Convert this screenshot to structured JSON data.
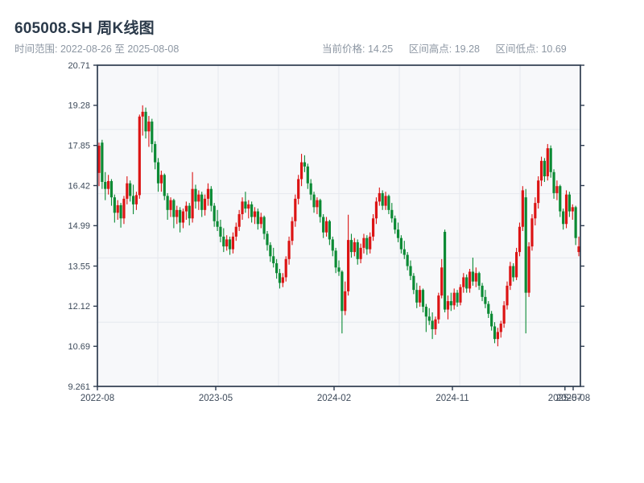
{
  "header": {
    "title": "605008.SH 周K线图",
    "time_range": "时间范围: 2022-08-26 至 2025-08-08",
    "stats": [
      {
        "label": "当前价格:",
        "value": "14.25"
      },
      {
        "label": "区间高点:",
        "value": "19.28"
      },
      {
        "label": "区间低点:",
        "value": "10.69"
      }
    ]
  },
  "chart_data": {
    "type": "candlestick",
    "title": "605008.SH 周K线图",
    "symbol": "605008.SH",
    "frequency": "weekly",
    "start_date": "2022-08-26",
    "end_date": "2025-08-08",
    "current_price": 14.25,
    "range_high": 19.28,
    "range_low": 10.69,
    "ylim": [
      9.261,
      20.71
    ],
    "grid": true,
    "colors": {
      "up": "#dc1414",
      "down": "#0b8a34",
      "plot_bg": "#f7f8fa",
      "grid": "#e6e9ee",
      "spine": "#2e3c4f",
      "tick_label": "#3d4a5a"
    },
    "y_ticks": [
      "20.71",
      "19.28",
      "17.85",
      "16.42",
      "14.99",
      "13.55",
      "12.12",
      "10.69",
      "9.261"
    ],
    "x_ticks": [
      {
        "label": "2022-08",
        "f": 0.0
      },
      {
        "label": "2023-05",
        "f": 0.245
      },
      {
        "label": "2024-02",
        "f": 0.49
      },
      {
        "label": "2024-11",
        "f": 0.735
      },
      {
        "label": "2025-07",
        "f": 0.968
      },
      {
        "label": "2025-08",
        "f": 0.985
      }
    ],
    "ohlc": [
      [
        16.87,
        17.95,
        16.4,
        17.84
      ],
      [
        17.95,
        18.05,
        16.3,
        16.55
      ],
      [
        16.55,
        16.9,
        15.9,
        16.3
      ],
      [
        16.3,
        16.8,
        16.1,
        16.58
      ],
      [
        16.58,
        16.65,
        15.7,
        16.0
      ],
      [
        16.0,
        16.1,
        15.1,
        15.45
      ],
      [
        15.45,
        15.9,
        15.2,
        15.72
      ],
      [
        15.72,
        15.8,
        14.92,
        15.25
      ],
      [
        15.25,
        16.05,
        15.05,
        15.95
      ],
      [
        15.95,
        16.75,
        15.75,
        16.5
      ],
      [
        16.5,
        16.6,
        15.85,
        16.05
      ],
      [
        16.05,
        16.45,
        15.4,
        15.75
      ],
      [
        15.75,
        16.2,
        15.55,
        16.08
      ],
      [
        16.08,
        18.95,
        15.95,
        18.88
      ],
      [
        18.88,
        19.28,
        18.2,
        19.05
      ],
      [
        19.05,
        19.2,
        18.1,
        18.35
      ],
      [
        18.35,
        18.9,
        17.8,
        18.7
      ],
      [
        18.7,
        18.8,
        17.6,
        17.9
      ],
      [
        17.9,
        18.0,
        17.0,
        17.25
      ],
      [
        17.25,
        17.4,
        16.2,
        16.5
      ],
      [
        16.5,
        16.95,
        16.2,
        16.8
      ],
      [
        16.8,
        16.85,
        15.9,
        16.05
      ],
      [
        16.05,
        16.15,
        15.2,
        15.55
      ],
      [
        15.55,
        16.0,
        15.3,
        15.9
      ],
      [
        15.9,
        15.95,
        14.9,
        15.3
      ],
      [
        15.3,
        15.7,
        15.05,
        15.55
      ],
      [
        15.55,
        15.65,
        14.75,
        15.1
      ],
      [
        15.1,
        15.6,
        14.9,
        15.5
      ],
      [
        15.5,
        15.85,
        15.2,
        15.7
      ],
      [
        15.7,
        15.8,
        15.0,
        15.25
      ],
      [
        15.25,
        16.9,
        15.1,
        16.3
      ],
      [
        16.3,
        16.45,
        15.6,
        15.85
      ],
      [
        15.85,
        16.25,
        15.55,
        16.1
      ],
      [
        16.1,
        16.2,
        15.3,
        15.55
      ],
      [
        15.55,
        16.1,
        15.35,
        15.95
      ],
      [
        15.95,
        16.5,
        15.7,
        16.3
      ],
      [
        16.3,
        16.4,
        15.5,
        15.7
      ],
      [
        15.7,
        15.8,
        14.95,
        15.15
      ],
      [
        15.15,
        15.55,
        14.8,
        14.95
      ],
      [
        14.95,
        15.2,
        14.4,
        14.6
      ],
      [
        14.6,
        14.9,
        14.05,
        14.25
      ],
      [
        14.25,
        14.65,
        14.1,
        14.5
      ],
      [
        14.5,
        14.6,
        13.95,
        14.15
      ],
      [
        14.15,
        14.75,
        14.0,
        14.6
      ],
      [
        14.6,
        15.1,
        14.45,
        14.95
      ],
      [
        14.95,
        15.55,
        14.8,
        15.4
      ],
      [
        15.4,
        16.0,
        15.2,
        15.85
      ],
      [
        15.85,
        16.2,
        15.45,
        15.6
      ],
      [
        15.6,
        15.9,
        15.25,
        15.75
      ],
      [
        15.75,
        15.85,
        15.1,
        15.3
      ],
      [
        15.3,
        15.65,
        15.05,
        15.5
      ],
      [
        15.5,
        15.6,
        14.85,
        15.05
      ],
      [
        15.05,
        15.45,
        14.9,
        15.3
      ],
      [
        15.3,
        15.35,
        14.5,
        14.7
      ],
      [
        14.7,
        14.8,
        14.1,
        14.3
      ],
      [
        14.3,
        14.4,
        13.7,
        13.9
      ],
      [
        13.9,
        14.2,
        13.5,
        13.65
      ],
      [
        13.65,
        13.8,
        13.1,
        13.3
      ],
      [
        13.3,
        13.45,
        12.75,
        12.95
      ],
      [
        12.95,
        13.3,
        12.8,
        13.15
      ],
      [
        13.15,
        13.9,
        13.0,
        13.8
      ],
      [
        13.8,
        14.6,
        13.6,
        14.45
      ],
      [
        14.45,
        15.3,
        14.3,
        15.15
      ],
      [
        15.15,
        16.1,
        14.95,
        15.95
      ],
      [
        15.95,
        16.8,
        15.75,
        16.65
      ],
      [
        16.65,
        17.55,
        16.4,
        17.25
      ],
      [
        17.25,
        17.5,
        16.9,
        17.1
      ],
      [
        17.1,
        17.2,
        16.3,
        16.5
      ],
      [
        16.5,
        16.65,
        15.9,
        16.1
      ],
      [
        16.1,
        16.2,
        15.45,
        15.65
      ],
      [
        15.65,
        16.0,
        15.4,
        15.9
      ],
      [
        15.9,
        15.95,
        15.1,
        15.3
      ],
      [
        15.3,
        15.4,
        14.55,
        14.75
      ],
      [
        14.75,
        15.3,
        14.6,
        15.15
      ],
      [
        15.15,
        15.2,
        14.3,
        14.5
      ],
      [
        14.5,
        14.6,
        13.9,
        14.1
      ],
      [
        14.1,
        14.2,
        13.3,
        13.5
      ],
      [
        13.5,
        13.75,
        13.2,
        13.35
      ],
      [
        13.35,
        13.4,
        11.15,
        11.95
      ],
      [
        11.95,
        13.0,
        11.8,
        12.65
      ],
      [
        12.65,
        15.38,
        12.5,
        14.48
      ],
      [
        14.48,
        14.7,
        13.85,
        14.05
      ],
      [
        14.05,
        14.55,
        13.9,
        14.4
      ],
      [
        14.4,
        14.5,
        13.6,
        13.8
      ],
      [
        13.8,
        14.35,
        13.65,
        14.2
      ],
      [
        14.2,
        14.7,
        14.0,
        14.55
      ],
      [
        14.55,
        14.65,
        13.95,
        14.15
      ],
      [
        14.15,
        14.75,
        14.0,
        14.6
      ],
      [
        14.6,
        15.4,
        14.45,
        15.25
      ],
      [
        15.25,
        16.0,
        15.05,
        15.85
      ],
      [
        15.85,
        16.35,
        15.7,
        16.15
      ],
      [
        16.15,
        16.25,
        15.55,
        15.7
      ],
      [
        15.7,
        16.2,
        15.55,
        16.05
      ],
      [
        16.05,
        16.1,
        15.4,
        15.55
      ],
      [
        15.55,
        15.8,
        15.1,
        15.25
      ],
      [
        15.25,
        15.35,
        14.7,
        14.85
      ],
      [
        14.85,
        15.1,
        14.4,
        14.55
      ],
      [
        14.55,
        14.65,
        14.0,
        14.15
      ],
      [
        14.15,
        14.45,
        13.8,
        13.95
      ],
      [
        13.95,
        14.05,
        13.4,
        13.55
      ],
      [
        13.55,
        13.75,
        13.05,
        13.2
      ],
      [
        13.2,
        13.3,
        12.55,
        12.7
      ],
      [
        12.7,
        12.95,
        12.05,
        12.25
      ],
      [
        12.25,
        12.85,
        12.1,
        12.7
      ],
      [
        12.7,
        12.75,
        11.9,
        12.1
      ],
      [
        12.1,
        12.2,
        11.2,
        11.75
      ],
      [
        11.75,
        12.05,
        11.45,
        11.6
      ],
      [
        11.6,
        11.9,
        10.95,
        11.3
      ],
      [
        11.3,
        11.75,
        11.1,
        11.65
      ],
      [
        11.65,
        12.6,
        11.5,
        12.5
      ],
      [
        12.5,
        13.8,
        12.4,
        13.5
      ],
      [
        14.77,
        14.85,
        11.9,
        12.0
      ],
      [
        12.0,
        12.5,
        11.65,
        12.3
      ],
      [
        12.3,
        12.6,
        11.95,
        12.15
      ],
      [
        12.15,
        12.75,
        12.0,
        12.6
      ],
      [
        12.6,
        12.7,
        12.1,
        12.25
      ],
      [
        12.25,
        12.9,
        12.15,
        12.8
      ],
      [
        12.8,
        13.3,
        12.6,
        13.15
      ],
      [
        13.15,
        13.25,
        12.6,
        12.75
      ],
      [
        12.75,
        13.45,
        12.6,
        13.35
      ],
      [
        13.35,
        13.85,
        12.85,
        13.0
      ],
      [
        13.0,
        13.5,
        12.8,
        13.3
      ],
      [
        13.3,
        13.35,
        12.7,
        12.85
      ],
      [
        12.85,
        12.95,
        12.3,
        12.45
      ],
      [
        12.45,
        12.7,
        12.05,
        12.2
      ],
      [
        12.2,
        12.3,
        11.7,
        11.85
      ],
      [
        11.85,
        11.95,
        11.25,
        11.4
      ],
      [
        11.4,
        11.55,
        10.8,
        10.95
      ],
      [
        10.95,
        11.35,
        10.69,
        11.2
      ],
      [
        11.2,
        11.6,
        11.0,
        11.5
      ],
      [
        11.5,
        12.3,
        11.35,
        12.15
      ],
      [
        12.15,
        13.0,
        12.0,
        12.85
      ],
      [
        12.85,
        13.7,
        12.7,
        13.55
      ],
      [
        13.55,
        13.65,
        13.0,
        13.15
      ],
      [
        13.15,
        14.2,
        13.05,
        14.05
      ],
      [
        14.05,
        15.1,
        13.9,
        14.95
      ],
      [
        14.95,
        16.4,
        14.8,
        16.25
      ],
      [
        16.0,
        16.3,
        11.15,
        12.6
      ],
      [
        12.6,
        14.4,
        12.45,
        14.25
      ],
      [
        14.25,
        15.4,
        14.1,
        15.25
      ],
      [
        15.25,
        16.0,
        15.0,
        15.8
      ],
      [
        15.8,
        16.75,
        15.6,
        16.6
      ],
      [
        16.6,
        17.45,
        16.4,
        17.3
      ],
      [
        17.3,
        17.4,
        16.55,
        16.75
      ],
      [
        16.75,
        17.9,
        16.6,
        17.75
      ],
      [
        17.75,
        17.85,
        16.7,
        16.9
      ],
      [
        16.9,
        17.0,
        15.95,
        16.15
      ],
      [
        16.15,
        16.6,
        15.9,
        16.4
      ],
      [
        16.4,
        16.45,
        15.3,
        15.5
      ],
      [
        15.5,
        15.6,
        14.85,
        15.05
      ],
      [
        15.05,
        16.25,
        14.9,
        16.1
      ],
      [
        16.1,
        16.2,
        15.3,
        15.5
      ],
      [
        15.5,
        15.75,
        15.2,
        15.65
      ],
      [
        15.65,
        15.7,
        14.3,
        14.55
      ],
      [
        14.05,
        14.6,
        13.9,
        14.25
      ]
    ]
  }
}
